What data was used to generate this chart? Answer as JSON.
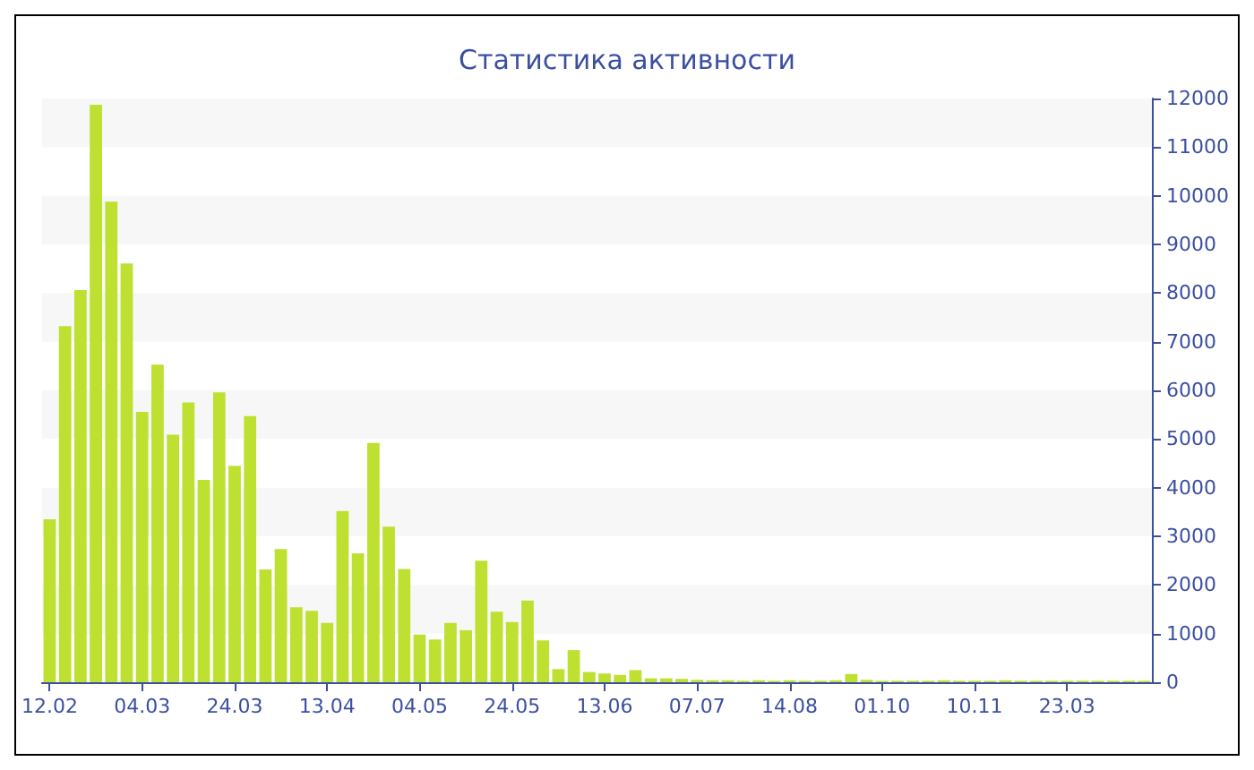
{
  "chart_data": {
    "type": "bar",
    "title": "Статистика активности",
    "categories": [
      "12.02",
      null,
      null,
      null,
      null,
      null,
      "04.03",
      null,
      null,
      null,
      null,
      null,
      "24.03",
      null,
      null,
      null,
      null,
      null,
      "13.04",
      null,
      null,
      null,
      null,
      null,
      "04.05",
      null,
      null,
      null,
      null,
      null,
      "24.05",
      null,
      null,
      null,
      null,
      null,
      "13.06",
      null,
      null,
      null,
      null,
      null,
      "07.07",
      null,
      null,
      null,
      null,
      null,
      "14.08",
      null,
      null,
      null,
      null,
      null,
      "01.10",
      null,
      null,
      null,
      null,
      null,
      "10.11",
      null,
      null,
      null,
      null,
      null,
      "23.03",
      null,
      null,
      null,
      null,
      null
    ],
    "values": [
      3350,
      7320,
      8060,
      11870,
      9880,
      8610,
      5560,
      6530,
      5090,
      5750,
      4160,
      5960,
      4450,
      5470,
      2320,
      2740,
      1540,
      1470,
      1220,
      3520,
      2650,
      4920,
      3200,
      2330,
      980,
      880,
      1220,
      1070,
      2500,
      1450,
      1240,
      1680,
      860,
      270,
      660,
      210,
      180,
      150,
      250,
      80,
      80,
      70,
      50,
      40,
      40,
      30,
      40,
      30,
      40,
      30,
      30,
      40,
      170,
      50,
      30,
      30,
      30,
      30,
      40,
      30,
      30,
      30,
      40,
      30,
      30,
      30,
      30,
      30,
      30,
      30,
      30,
      30
    ],
    "color": "#bde031",
    "ylim": [
      0,
      12000
    ],
    "yticks": [
      0,
      1000,
      2000,
      3000,
      4000,
      5000,
      6000,
      7000,
      8000,
      9000,
      10000,
      11000,
      12000
    ]
  }
}
